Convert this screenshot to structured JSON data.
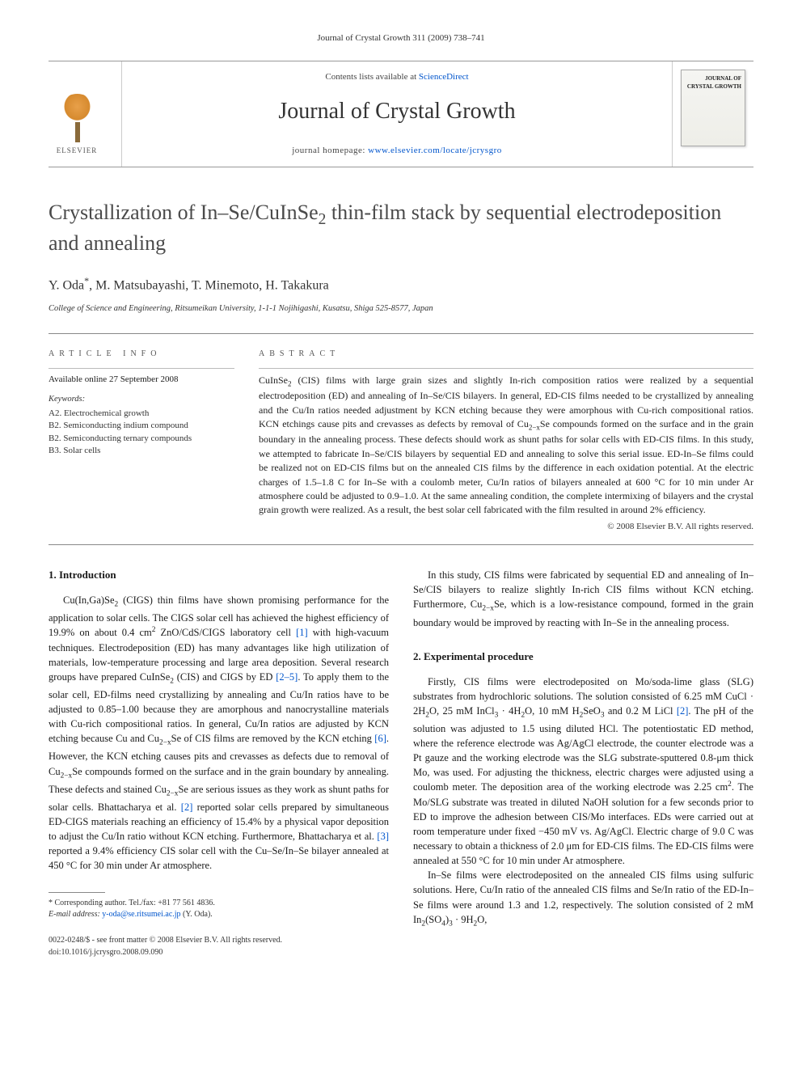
{
  "journal_ref": "Journal of Crystal Growth 311 (2009) 738–741",
  "masthead": {
    "contents_prefix": "Contents lists available at ",
    "contents_link": "ScienceDirect",
    "journal_name": "Journal of Crystal Growth",
    "homepage_prefix": "journal homepage: ",
    "homepage_link": "www.elsevier.com/locate/jcrysgro",
    "publisher": "ELSEVIER",
    "cover_small": "JOURNAL OF",
    "cover_title": "CRYSTAL GROWTH"
  },
  "title_html": "Crystallization of In–Se/CuInSe<sub>2</sub> thin-film stack by sequential electrodeposition and annealing",
  "authors_html": "Y. Oda<sup>*</sup>, M. Matsubayashi, T. Minemoto, H. Takakura",
  "affiliation": "College of Science and Engineering, Ritsumeikan University, 1-1-1 Nojihigashi, Kusatsu, Shiga 525-8577, Japan",
  "article_info": {
    "header": "ARTICLE INFO",
    "available": "Available online 27 September 2008",
    "keywords_label": "Keywords:",
    "keywords": [
      "A2. Electrochemical growth",
      "B2. Semiconducting indium compound",
      "B2. Semiconducting ternary compounds",
      "B3. Solar cells"
    ]
  },
  "abstract": {
    "header": "ABSTRACT",
    "text_html": "CuInSe<sub>2</sub> (CIS) films with large grain sizes and slightly In-rich composition ratios were realized by a sequential electrodeposition (ED) and annealing of In–Se/CIS bilayers. In general, ED-CIS films needed to be crystallized by annealing and the Cu/In ratios needed adjustment by KCN etching because they were amorphous with Cu-rich compositional ratios. KCN etchings cause pits and crevasses as defects by removal of Cu<sub>2−x</sub>Se compounds formed on the surface and in the grain boundary in the annealing process. These defects should work as shunt paths for solar cells with ED-CIS films. In this study, we attempted to fabricate In–Se/CIS bilayers by sequential ED and annealing to solve this serial issue. ED-In–Se films could be realized not on ED-CIS films but on the annealed CIS films by the difference in each oxidation potential. At the electric charges of 1.5–1.8 C for In–Se with a coulomb meter, Cu/In ratios of bilayers annealed at 600 °C for 10 min under Ar atmosphere could be adjusted to 0.9–1.0. At the same annealing condition, the complete intermixing of bilayers and the crystal grain growth were realized. As a result, the best solar cell fabricated with the film resulted in around 2% efficiency.",
    "copyright": "© 2008 Elsevier B.V. All rights reserved."
  },
  "body": {
    "section1_heading": "1. Introduction",
    "section1_p1_html": "Cu(In,Ga)Se<sub>2</sub> (CIGS) thin films have shown promising performance for the application to solar cells. The CIGS solar cell has achieved the highest efficiency of 19.9% on about 0.4 cm<sup>2</sup> ZnO/CdS/CIGS laboratory cell <a class='ref-link'>[1]</a> with high-vacuum techniques. Electrodeposition (ED) has many advantages like high utilization of materials, low-temperature processing and large area deposition. Several research groups have prepared CuInSe<sub>2</sub> (CIS) and CIGS by ED <a class='ref-link'>[2–5]</a>. To apply them to the solar cell, ED-films need crystallizing by annealing and Cu/In ratios have to be adjusted to 0.85–1.00 because they are amorphous and nanocrystalline materials with Cu-rich compositional ratios. In general, Cu/In ratios are adjusted by KCN etching because Cu and Cu<sub>2−x</sub>Se of CIS films are removed by the KCN etching <a class='ref-link'>[6]</a>. However, the KCN etching causes pits and crevasses as defects due to removal of Cu<sub>2−x</sub>Se compounds formed on the surface and in the grain boundary by annealing. These defects and stained Cu<sub>2−x</sub>Se are serious issues as they work as shunt paths for solar cells. Bhattacharya et al. <a class='ref-link'>[2]</a> reported solar cells prepared by simultaneous ED-CIGS materials reaching an efficiency of 15.4% by a physical vapor deposition to adjust the Cu/In ratio without KCN etching. Furthermore, Bhattacharya et al. <a class='ref-link'>[3]</a> reported a 9.4% efficiency CIS solar cell with the Cu–Se/In–Se bilayer annealed at 450 °C for 30 min under Ar atmosphere.",
    "col2_p1_html": "In this study, CIS films were fabricated by sequential ED and annealing of In–Se/CIS bilayers to realize slightly In-rich CIS films without KCN etching. Furthermore, Cu<sub>2−x</sub>Se, which is a low-resistance compound, formed in the grain boundary would be improved by reacting with In–Se in the annealing process.",
    "section2_heading": "2. Experimental procedure",
    "section2_p1_html": "Firstly, CIS films were electrodeposited on Mo/soda-lime glass (SLG) substrates from hydrochloric solutions. The solution consisted of 6.25 mM CuCl · 2H<sub>2</sub>O, 25 mM InCl<sub>3</sub> · 4H<sub>2</sub>O, 10 mM H<sub>2</sub>SeO<sub>3</sub> and 0.2 M LiCl <a class='ref-link'>[2]</a>. The pH of the solution was adjusted to 1.5 using diluted HCl. The potentiostatic ED method, where the reference electrode was Ag/AgCl electrode, the counter electrode was a Pt gauze and the working electrode was the SLG substrate-sputtered 0.8-μm thick Mo, was used. For adjusting the thickness, electric charges were adjusted using a coulomb meter. The deposition area of the working electrode was 2.25 cm<sup>2</sup>. The Mo/SLG substrate was treated in diluted NaOH solution for a few seconds prior to ED to improve the adhesion between CIS/Mo interfaces. EDs were carried out at room temperature under fixed −450 mV vs. Ag/AgCl. Electric charge of 9.0 C was necessary to obtain a thickness of 2.0 μm for ED-CIS films. The ED-CIS films were annealed at 550 °C for 10 min under Ar atmosphere.",
    "section2_p2_html": "In–Se films were electrodeposited on the annealed CIS films using sulfuric solutions. Here, Cu/In ratio of the annealed CIS films and Se/In ratio of the ED-In–Se films were around 1.3 and 1.2, respectively. The solution consisted of 2 mM In<sub>2</sub>(SO<sub>4</sub>)<sub>3</sub> · 9H<sub>2</sub>O,"
  },
  "footnotes": {
    "corresponding": "* Corresponding author. Tel./fax: +81 77 561 4836.",
    "email_label": "E-mail address: ",
    "email": "y-oda@se.ritsumei.ac.jp",
    "email_suffix": " (Y. Oda)."
  },
  "footer": {
    "line1": "0022-0248/$ - see front matter © 2008 Elsevier B.V. All rights reserved.",
    "line2": "doi:10.1016/j.jcrysgro.2008.09.090"
  },
  "colors": {
    "link": "#0055cc",
    "text": "#1a1a1a",
    "rule": "#888888",
    "elsevier_orange": "#e8a04a"
  }
}
